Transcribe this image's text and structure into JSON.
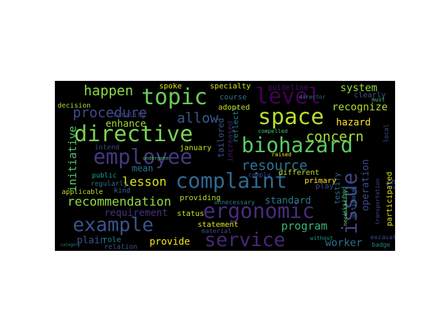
{
  "words": [
    {
      "text": "complaint",
      "color": "#31688e"
    },
    {
      "text": "biohazard",
      "color": "#5ec962"
    },
    {
      "text": "directive",
      "color": "#7ad151"
    },
    {
      "text": "service",
      "color": "#482878"
    },
    {
      "text": "space",
      "color": "#b5de2b"
    },
    {
      "text": "topic",
      "color": "#6ccd5a"
    },
    {
      "text": "level",
      "color": "#440154"
    },
    {
      "text": "ergonomic",
      "color": "#472d7b"
    },
    {
      "text": "employee",
      "color": "#443983"
    },
    {
      "text": "example",
      "color": "#3b528b"
    },
    {
      "text": "issue",
      "color": "#414487"
    },
    {
      "text": "recommendation",
      "color": "#90d743"
    },
    {
      "text": "procedure",
      "color": "#3e4a89"
    },
    {
      "text": "happen",
      "color": "#8fd744"
    },
    {
      "text": "resource",
      "color": "#2c728e"
    },
    {
      "text": "allow",
      "color": "#38598c"
    },
    {
      "text": "concern",
      "color": "#a2da37"
    },
    {
      "text": "lesson",
      "color": "#d8e219"
    },
    {
      "text": "initiative",
      "color": "#52c569"
    },
    {
      "text": "program",
      "color": "#35b779"
    },
    {
      "text": "worker",
      "color": "#2d708e"
    },
    {
      "text": "system",
      "color": "#95d840"
    },
    {
      "text": "recognize",
      "color": "#addc30"
    },
    {
      "text": "hazard",
      "color": "#fde725"
    },
    {
      "text": "standard",
      "color": "#2a788e"
    },
    {
      "text": "operation",
      "color": "#3f4889"
    },
    {
      "text": "requirement",
      "color": "#46327e"
    },
    {
      "text": "provide",
      "color": "#f1e51d"
    },
    {
      "text": "plain",
      "color": "#3a538b"
    },
    {
      "text": "enhance",
      "color": "#a0da39"
    },
    {
      "text": "mean",
      "color": "#2b758e"
    },
    {
      "text": "specialty",
      "color": "#d5e21a"
    },
    {
      "text": "guideline",
      "color": "#481467"
    },
    {
      "text": "spoke",
      "color": "#dde318"
    },
    {
      "text": "course",
      "color": "#2d708e"
    },
    {
      "text": "clearly",
      "color": "#3b528b"
    },
    {
      "text": "adopted",
      "color": "#c0df25"
    },
    {
      "text": "providing",
      "color": "#b2dd2d"
    },
    {
      "text": "tailored",
      "color": "#3b528b"
    },
    {
      "text": "reflects",
      "color": "#25858e"
    },
    {
      "text": "increased",
      "color": "#481b6d"
    },
    {
      "text": "testify",
      "color": "#2f6c8e"
    },
    {
      "text": "participated",
      "color": "#e5e419"
    },
    {
      "text": "transportation",
      "color": "#3d4d8a"
    },
    {
      "text": "visited",
      "color": "#21918c"
    },
    {
      "text": "ultimate",
      "color": "#2e6e8e"
    },
    {
      "text": "primary",
      "color": "#fde725"
    },
    {
      "text": "different",
      "color": "#b8de29"
    },
    {
      "text": "shown",
      "color": "#3c508b"
    },
    {
      "text": "location",
      "color": "#3e4a89"
    },
    {
      "text": "excavation",
      "color": "#3d4e8a"
    },
    {
      "text": "badge",
      "color": "#27808e"
    },
    {
      "text": "decision",
      "color": "#a8db34"
    },
    {
      "text": "fatality",
      "color": "#423f85"
    },
    {
      "text": "intend",
      "color": "#3f4788"
    },
    {
      "text": "january",
      "color": "#c2df23"
    },
    {
      "text": "public",
      "color": "#1fa187"
    },
    {
      "text": "regularly",
      "color": "#2e6f8e"
    },
    {
      "text": "applicable",
      "color": "#bade28"
    },
    {
      "text": "kind",
      "color": "#31688e"
    },
    {
      "text": "status",
      "color": "#cde11d"
    },
    {
      "text": "statement",
      "color": "#e2e418"
    },
    {
      "text": "material",
      "color": "#3e4989"
    },
    {
      "text": "role",
      "color": "#25848e"
    },
    {
      "text": "relation",
      "color": "#39568c"
    },
    {
      "text": "unnecessary",
      "color": "#277f8e"
    },
    {
      "text": "without",
      "color": "#1f948c"
    },
    {
      "text": "play",
      "color": "#3f4889"
    },
    {
      "text": "comply",
      "color": "#3e4a89"
    },
    {
      "text": "necessarily",
      "color": "#73d056"
    },
    {
      "text": "raised",
      "color": "#f1e51d"
    },
    {
      "text": "compelled",
      "color": "#44bf70"
    },
    {
      "text": "director",
      "color": "#2e6f8e"
    },
    {
      "text": "local",
      "color": "#3b528b"
    },
    {
      "text": "must",
      "color": "#4ac16d"
    },
    {
      "text": "category",
      "color": "#26828e"
    },
    {
      "text": "undergone",
      "color": "#4ec36b"
    }
  ]
}
